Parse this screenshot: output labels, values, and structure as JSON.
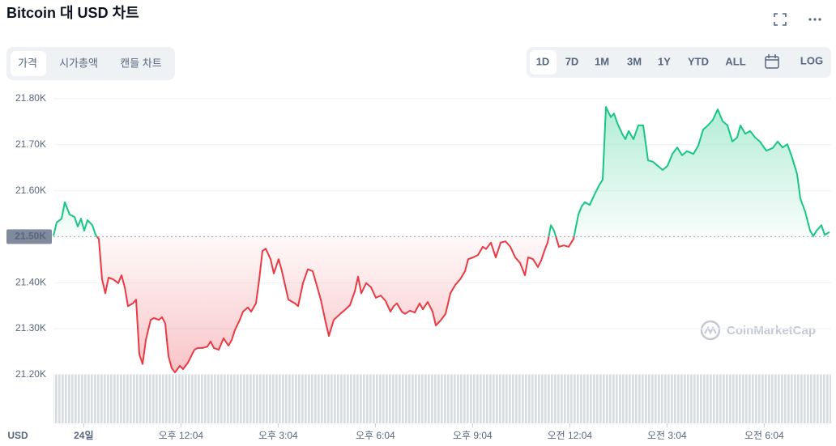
{
  "ui": {
    "tabs": [
      "가격",
      "시가총액",
      "캔들 차트"
    ],
    "ranges": [
      "1D",
      "7D",
      "1M",
      "3M",
      "1Y",
      "YTD",
      "ALL"
    ],
    "log": "LOG",
    "watermark": "CoinMarketCap"
  },
  "chart_data": {
    "type": "line",
    "title": "Bitcoin 대 USD 차트",
    "ylabel": "USD",
    "x": [
      488,
      494,
      503,
      509,
      518,
      527,
      533,
      539,
      545,
      551,
      560,
      566,
      572,
      578,
      584,
      590,
      599,
      608,
      614,
      620,
      626,
      635,
      641,
      647,
      653,
      659,
      668,
      674,
      683,
      689,
      695,
      701,
      707,
      713,
      722,
      728,
      737,
      743,
      749,
      755,
      764,
      773,
      779,
      785,
      794,
      803,
      812,
      818,
      824,
      833,
      839,
      848,
      854,
      863,
      869,
      875,
      881,
      890,
      896,
      905,
      911,
      923,
      935,
      941,
      950,
      959,
      968,
      977,
      983,
      992,
      998,
      1007,
      1019,
      1028,
      1037,
      1046,
      1052,
      1058,
      1067,
      1076,
      1085,
      1094,
      1103,
      1112,
      1118,
      1124,
      1133,
      1139,
      1148,
      1157,
      1166,
      1172,
      1181,
      1190,
      1196,
      1205,
      1214,
      1223,
      1232,
      1241,
      1250,
      1256,
      1265,
      1274,
      1283,
      1289,
      1298,
      1307,
      1316,
      1325,
      1334,
      1343,
      1352,
      1361,
      1367,
      1376,
      1385,
      1391,
      1397,
      1403,
      1409,
      1415,
      1424,
      1433,
      1442,
      1451,
      1460,
      1466,
      1472,
      1481,
      1490,
      1499,
      1505,
      1511,
      1520,
      1526,
      1532,
      1541,
      1547,
      1553,
      1562,
      1571,
      1580,
      1589,
      1598,
      1607,
      1616,
      1625,
      1634,
      1643,
      1652,
      1661,
      1673,
      1682,
      1691,
      1700,
      1709,
      1718,
      1727,
      1736,
      1745,
      1754,
      1760,
      1769,
      1778,
      1787,
      1796,
      1808,
      1820,
      1829,
      1838,
      1847,
      1856,
      1865,
      1871,
      1880,
      1889,
      1895,
      1901,
      1910,
      1916,
      1925
    ],
    "values": [
      21502,
      21531,
      21539,
      21575,
      21548,
      21543,
      21522,
      21539,
      21513,
      21536,
      21525,
      21504,
      21495,
      21407,
      21377,
      21411,
      21407,
      21399,
      21416,
      21390,
      21349,
      21355,
      21363,
      21244,
      21223,
      21275,
      21319,
      21323,
      21319,
      21325,
      21311,
      21240,
      21214,
      21205,
      21219,
      21212,
      21226,
      21240,
      21254,
      21258,
      21258,
      21261,
      21272,
      21258,
      21254,
      21279,
      21263,
      21275,
      21297,
      21319,
      21337,
      21346,
      21337,
      21355,
      21407,
      21469,
      21474,
      21451,
      21420,
      21451,
      21425,
      21363,
      21355,
      21349,
      21399,
      21429,
      21425,
      21388,
      21363,
      21314,
      21284,
      21319,
      21332,
      21341,
      21351,
      21381,
      21413,
      21377,
      21399,
      21390,
      21367,
      21372,
      21360,
      21337,
      21349,
      21355,
      21337,
      21332,
      21339,
      21335,
      21355,
      21342,
      21358,
      21337,
      21307,
      21318,
      21332,
      21377,
      21395,
      21407,
      21425,
      21451,
      21455,
      21460,
      21478,
      21473,
      21487,
      21455,
      21487,
      21490,
      21478,
      21455,
      21443,
      21416,
      21455,
      21451,
      21434,
      21448,
      21469,
      21487,
      21525,
      21513,
      21478,
      21481,
      21478,
      21495,
      21548,
      21566,
      21575,
      21569,
      21592,
      21613,
      21624,
      21782,
      21760,
      21768,
      21747,
      21724,
      21712,
      21730,
      21712,
      21742,
      21742,
      21666,
      21663,
      21654,
      21645,
      21654,
      21680,
      21694,
      21677,
      21686,
      21680,
      21698,
      21733,
      21742,
      21754,
      21777,
      21751,
      21742,
      21707,
      21716,
      21742,
      21724,
      21730,
      21716,
      21707,
      21687,
      21693,
      21707,
      21694,
      21701,
      21671,
      21636,
      21583,
      21554,
      21513,
      21501,
      21513,
      21525,
      21504,
      21510
    ],
    "baseline": 21500,
    "up_color": "#16c784",
    "down_color": "#ea3943",
    "xlim": [
      488,
      1928
    ],
    "xticks": [
      {
        "value": 544,
        "label": "24일"
      },
      {
        "value": 724,
        "label": "오후 12:04"
      },
      {
        "value": 904,
        "label": "오후 3:04"
      },
      {
        "value": 1084,
        "label": "오후 6:04"
      },
      {
        "value": 1264,
        "label": "오후 9:04"
      },
      {
        "value": 1444,
        "label": "오전 12:04"
      },
      {
        "value": 1624,
        "label": "오전 3:04"
      },
      {
        "value": 1804,
        "label": "오전 6:04"
      }
    ],
    "ylim": [
      21100,
      21800
    ],
    "yticks": [
      {
        "value": 21200,
        "label": "21.20K"
      },
      {
        "value": 21300,
        "label": "21.30K"
      },
      {
        "value": 21400,
        "label": "21.40K"
      },
      {
        "value": 21500,
        "label": "21.50K"
      },
      {
        "value": 21600,
        "label": "21.60K"
      },
      {
        "value": 21700,
        "label": "21.70K"
      },
      {
        "value": 21800,
        "label": "21.80K"
      }
    ],
    "grid": true
  }
}
